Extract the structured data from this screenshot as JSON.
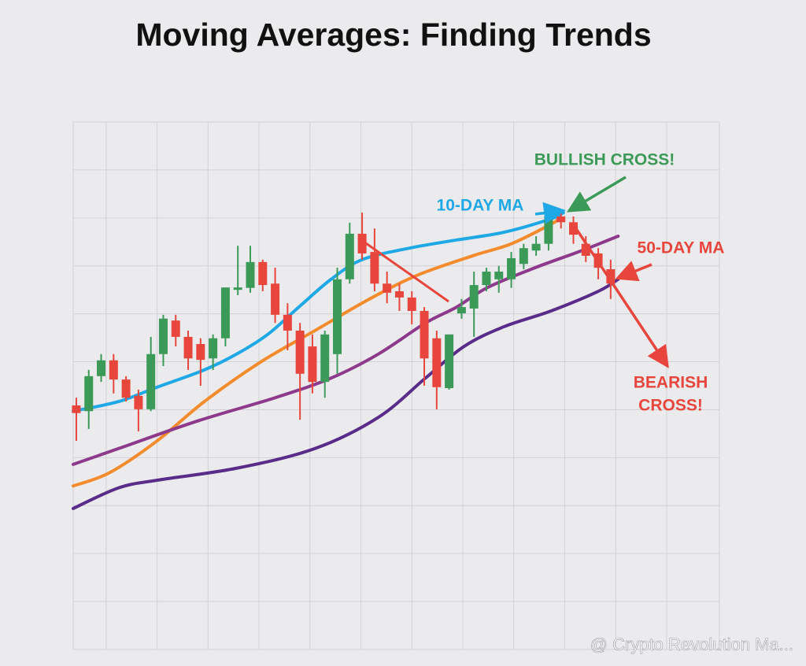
{
  "chart_data": {
    "type": "candlestick",
    "title": "Moving Averages: Finding Trends",
    "xlim": [
      0.75,
      52.75
    ],
    "ylim": [
      0,
      110
    ],
    "xticks": [
      3.4,
      7.5,
      11.6,
      15.7,
      19.8,
      23.9,
      28,
      32.1,
      36.2,
      40.3,
      44.4,
      48.5
    ],
    "yticks": [
      0,
      10,
      20,
      30,
      40,
      50,
      60,
      70,
      80,
      90,
      100,
      110
    ],
    "grid": true,
    "up_color": "#3c9a58",
    "down_color": "#e8463d",
    "series": [
      {
        "type": "candlestick",
        "x": [
          1,
          2,
          3,
          4,
          5,
          6,
          7,
          8,
          9,
          10,
          11,
          12,
          13,
          14,
          15,
          16,
          17,
          18,
          19,
          20,
          21,
          22,
          23,
          24,
          25,
          26,
          27,
          28,
          29,
          30,
          31,
          32,
          33,
          34,
          35,
          36,
          37,
          38,
          39,
          40,
          41,
          42,
          43,
          44
        ],
        "open": [
          50.9,
          49.7,
          57.0,
          60.3,
          56.3,
          52.9,
          50.1,
          61.6,
          68.6,
          65.2,
          63.7,
          60.7,
          64.9,
          75.0,
          75.4,
          80.8,
          76.3,
          69.8,
          66.5,
          63.2,
          55.8,
          61.6,
          77.2,
          86.7,
          82.9,
          76.3,
          74.7,
          73.4,
          70.6,
          64.9,
          54.5,
          70.1,
          71.1,
          76.0,
          77.2,
          77.2,
          80.4,
          83.2,
          84.6,
          90.3,
          89.1,
          84.6,
          82.6,
          79.3
        ],
        "high": [
          52.5,
          58.3,
          61.6,
          61.6,
          57.0,
          54.2,
          65.2,
          69.8,
          69.8,
          66.5,
          64.9,
          65.7,
          75.5,
          84.2,
          84.2,
          81.3,
          79.6,
          72.2,
          68.1,
          65.7,
          66.5,
          79.6,
          89.0,
          91.1,
          87.8,
          78.8,
          76.3,
          74.7,
          71.4,
          66.5,
          65.7,
          73.1,
          78.8,
          79.6,
          80.0,
          82.9,
          84.6,
          86.2,
          90.3,
          91.1,
          90.3,
          86.2,
          83.7,
          81.3
        ],
        "low": [
          43.5,
          46.0,
          55.8,
          53.4,
          51.7,
          45.5,
          49.7,
          59.1,
          63.2,
          58.3,
          55.0,
          58.3,
          63.2,
          73.9,
          74.4,
          74.7,
          68.1,
          62.4,
          47.9,
          53.4,
          52.5,
          57.5,
          76.3,
          81.3,
          74.7,
          72.2,
          70.6,
          67.8,
          55.0,
          50.1,
          54.2,
          69.0,
          65.2,
          74.7,
          74.4,
          75.4,
          79.3,
          82.1,
          83.2,
          87.8,
          84.6,
          80.8,
          77.2,
          73.1
        ],
        "close": [
          49.3,
          57.0,
          60.3,
          56.3,
          52.5,
          50.1,
          61.6,
          69.0,
          65.2,
          60.7,
          60.4,
          64.9,
          75.5,
          75.5,
          80.8,
          76.0,
          69.8,
          66.5,
          57.5,
          55.8,
          65.7,
          77.2,
          86.7,
          82.6,
          76.3,
          74.4,
          73.4,
          70.6,
          60.7,
          54.7,
          65.7,
          71.4,
          76.0,
          78.8,
          78.8,
          81.6,
          83.7,
          84.6,
          90.3,
          89.1,
          86.5,
          82.1,
          79.6,
          76.3
        ]
      },
      {
        "type": "line",
        "color": "#1fa8e6",
        "x": [
          0.75,
          4.4,
          7.5,
          11.3,
          13.9,
          16.4,
          18.9,
          21.5,
          24.0,
          27.8,
          31.6,
          35.4,
          39.2,
          40.2
        ],
        "values": [
          49.7,
          51.7,
          54.7,
          58.3,
          61.6,
          65.7,
          71.4,
          77.2,
          81.3,
          83.7,
          85.4,
          87.0,
          89.8,
          91.1
        ]
      },
      {
        "type": "line",
        "color": "#f48b2c",
        "x": [
          0.75,
          3.7,
          7.5,
          11.3,
          15.8,
          20.2,
          24.6,
          28.4,
          32.9,
          36.0,
          39.2,
          39.8
        ],
        "values": [
          34.1,
          36.9,
          43.5,
          51.7,
          59.9,
          66.5,
          73.1,
          78.0,
          82.1,
          84.6,
          88.7,
          89.8
        ]
      },
      {
        "type": "line",
        "color": "#8e3a8c",
        "x": [
          0.75,
          4.4,
          10.7,
          17.0,
          21.5,
          25.3,
          29.1,
          31.6,
          34.1,
          37.9,
          41.7,
          44.6
        ],
        "values": [
          38.6,
          41.9,
          47.6,
          52.5,
          56.6,
          61.6,
          68.1,
          71.4,
          75.5,
          79.6,
          83.2,
          86.2
        ]
      },
      {
        "type": "line",
        "color": "#5a2c8a",
        "x": [
          0.75,
          4.4,
          7.5,
          13.9,
          20.2,
          25.3,
          29.1,
          32.2,
          35.4,
          39.2,
          43.0,
          44.6
        ],
        "values": [
          29.4,
          33.7,
          35.3,
          37.8,
          41.9,
          48.4,
          56.6,
          63.2,
          67.3,
          70.6,
          74.7,
          77.2
        ]
      }
    ],
    "annotations": [
      {
        "text": "BULLISH CROSS!",
        "color": "#3c9a58"
      },
      {
        "text": "10-DAY MA",
        "color": "#1fa8e6"
      },
      {
        "text": "50-DAY MA",
        "color": "#e8463d"
      },
      {
        "text": "BEARISH",
        "color": "#e8463d"
      },
      {
        "text": "CROSS!",
        "color": "#e8463d"
      }
    ],
    "watermark": "@ Crypto Revolution Ma..."
  }
}
